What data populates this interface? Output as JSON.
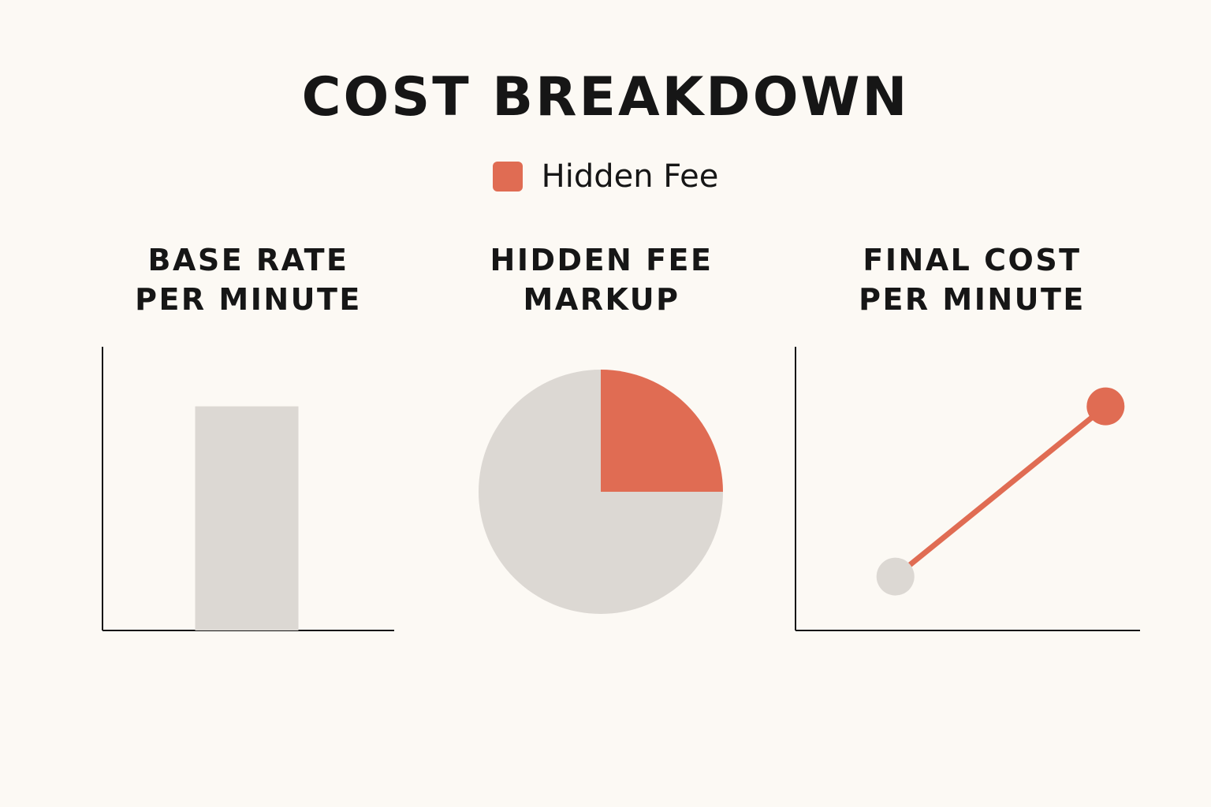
{
  "title": "COST BREAKDOWN",
  "legend": {
    "label": "Hidden Fee",
    "color": "#e06c53"
  },
  "colors": {
    "base": "#dcd8d3",
    "accent": "#e06c53",
    "axis": "#161616"
  },
  "chart_data": [
    {
      "type": "bar",
      "title_lines": [
        "BASE RATE",
        "PER MINUTE"
      ],
      "categories": [
        ""
      ],
      "values": [
        0.79
      ],
      "ylim": [
        0,
        1
      ],
      "grid": false
    },
    {
      "type": "pie",
      "title_lines": [
        "HIDDEN FEE",
        "MARKUP"
      ],
      "slices": [
        {
          "label": "Hidden Fee",
          "value": 25,
          "color": "#e06c53"
        },
        {
          "label": "",
          "value": 75,
          "color": "#dcd8d3"
        }
      ]
    },
    {
      "type": "line",
      "title_lines": [
        "FINAL COST",
        "PER MINUTE"
      ],
      "x": [
        0.29,
        0.9
      ],
      "y": [
        0.19,
        0.79
      ],
      "xlim": [
        0,
        1
      ],
      "ylim": [
        0,
        1
      ],
      "grid": false
    }
  ]
}
